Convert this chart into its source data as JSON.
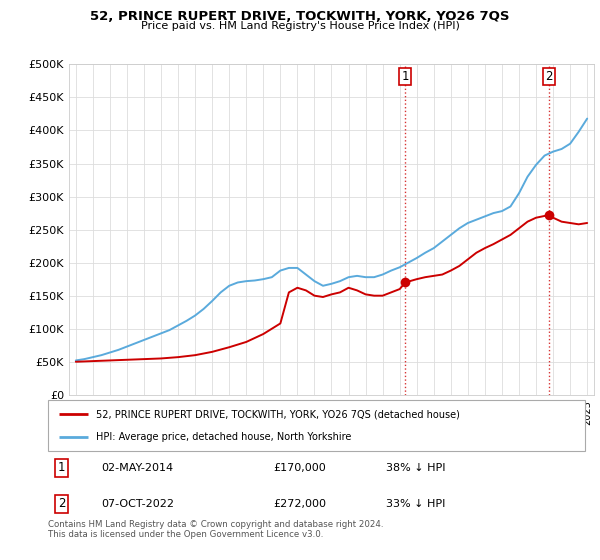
{
  "title": "52, PRINCE RUPERT DRIVE, TOCKWITH, YORK, YO26 7QS",
  "subtitle": "Price paid vs. HM Land Registry's House Price Index (HPI)",
  "legend_line1": "52, PRINCE RUPERT DRIVE, TOCKWITH, YORK, YO26 7QS (detached house)",
  "legend_line2": "HPI: Average price, detached house, North Yorkshire",
  "annotation1_date": "02-MAY-2014",
  "annotation1_price": "£170,000",
  "annotation1_hpi": "38% ↓ HPI",
  "annotation2_date": "07-OCT-2022",
  "annotation2_price": "£272,000",
  "annotation2_hpi": "33% ↓ HPI",
  "footnote": "Contains HM Land Registry data © Crown copyright and database right 2024.\nThis data is licensed under the Open Government Licence v3.0.",
  "hpi_color": "#5aaadc",
  "price_color": "#cc0000",
  "grid_color": "#dddddd",
  "ylim": [
    0,
    500000
  ],
  "yticks": [
    0,
    50000,
    100000,
    150000,
    200000,
    250000,
    300000,
    350000,
    400000,
    450000,
    500000
  ],
  "hpi_x": [
    1995.0,
    1995.5,
    1996.0,
    1996.5,
    1997.0,
    1997.5,
    1998.0,
    1998.5,
    1999.0,
    1999.5,
    2000.0,
    2000.5,
    2001.0,
    2001.5,
    2002.0,
    2002.5,
    2003.0,
    2003.5,
    2004.0,
    2004.5,
    2005.0,
    2005.5,
    2006.0,
    2006.5,
    2007.0,
    2007.5,
    2008.0,
    2008.5,
    2009.0,
    2009.5,
    2010.0,
    2010.5,
    2011.0,
    2011.5,
    2012.0,
    2012.5,
    2013.0,
    2013.5,
    2014.0,
    2014.5,
    2015.0,
    2015.5,
    2016.0,
    2016.5,
    2017.0,
    2017.5,
    2018.0,
    2018.5,
    2019.0,
    2019.5,
    2020.0,
    2020.5,
    2021.0,
    2021.5,
    2022.0,
    2022.5,
    2023.0,
    2023.5,
    2024.0,
    2024.5,
    2025.0
  ],
  "hpi_y": [
    52000,
    54000,
    57000,
    60000,
    64000,
    68000,
    73000,
    78000,
    83000,
    88000,
    93000,
    98000,
    105000,
    112000,
    120000,
    130000,
    142000,
    155000,
    165000,
    170000,
    172000,
    173000,
    175000,
    178000,
    188000,
    192000,
    192000,
    182000,
    172000,
    165000,
    168000,
    172000,
    178000,
    180000,
    178000,
    178000,
    182000,
    188000,
    193000,
    200000,
    207000,
    215000,
    222000,
    232000,
    242000,
    252000,
    260000,
    265000,
    270000,
    275000,
    278000,
    285000,
    305000,
    330000,
    348000,
    362000,
    368000,
    372000,
    380000,
    398000,
    418000
  ],
  "price_x": [
    1995.0,
    1996.0,
    1997.0,
    1998.0,
    1999.0,
    2000.0,
    2001.0,
    2002.0,
    2003.0,
    2004.0,
    2005.0,
    2006.0,
    2007.0,
    2007.5,
    2008.0,
    2008.5,
    2009.0,
    2009.5,
    2010.0,
    2010.5,
    2011.0,
    2011.5,
    2012.0,
    2012.5,
    2013.0,
    2013.5,
    2014.0,
    2014.33,
    2015.0,
    2015.5,
    2016.0,
    2016.5,
    2017.0,
    2017.5,
    2018.0,
    2018.5,
    2019.0,
    2019.5,
    2020.0,
    2020.5,
    2021.0,
    2021.5,
    2022.0,
    2022.75,
    2023.0,
    2023.5,
    2024.0,
    2024.5,
    2025.0
  ],
  "price_y": [
    50000,
    51000,
    52000,
    53000,
    54000,
    55000,
    57000,
    60000,
    65000,
    72000,
    80000,
    92000,
    108000,
    155000,
    162000,
    158000,
    150000,
    148000,
    152000,
    155000,
    162000,
    158000,
    152000,
    150000,
    150000,
    155000,
    160000,
    170000,
    175000,
    178000,
    180000,
    182000,
    188000,
    195000,
    205000,
    215000,
    222000,
    228000,
    235000,
    242000,
    252000,
    262000,
    268000,
    272000,
    268000,
    262000,
    260000,
    258000,
    260000
  ],
  "marker1_x": 2014.33,
  "marker1_y": 170000,
  "marker2_x": 2022.75,
  "marker2_y": 272000,
  "vline1_x": 2014.33,
  "vline2_x": 2022.75,
  "xlim": [
    1994.6,
    2025.4
  ]
}
